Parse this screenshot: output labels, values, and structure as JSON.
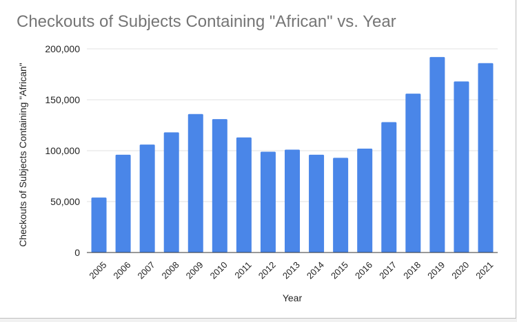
{
  "chart_data": {
    "type": "bar",
    "title": "Checkouts of Subjects Containing \"African\" vs. Year",
    "xlabel": "Year",
    "ylabel": "Checkouts of Subjects Containing \"African\"",
    "categories": [
      "2005",
      "2006",
      "2007",
      "2008",
      "2009",
      "2010",
      "2011",
      "2012",
      "2013",
      "2014",
      "2015",
      "2016",
      "2017",
      "2018",
      "2019",
      "2020",
      "2021"
    ],
    "values": [
      54000,
      96000,
      106000,
      118000,
      136000,
      131000,
      113000,
      99000,
      101000,
      96000,
      93000,
      102000,
      128000,
      156000,
      192000,
      168000,
      186000
    ],
    "ylim": [
      0,
      200000
    ],
    "yticks": [
      0,
      50000,
      100000,
      150000,
      200000
    ],
    "ytick_labels": [
      "0",
      "50,000",
      "100,000",
      "150,000",
      "200,000"
    ],
    "grid": true,
    "legend": "none",
    "bar_color": "#4a86e8",
    "grid_color": "#e0e0e0",
    "baseline_color": "#333333"
  }
}
